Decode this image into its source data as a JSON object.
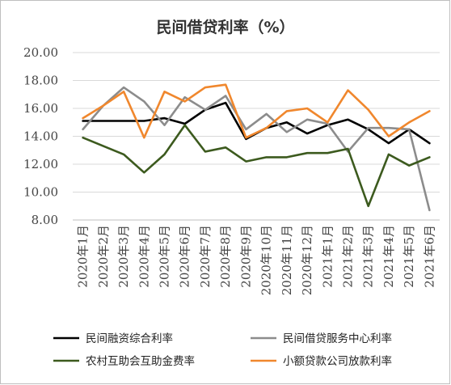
{
  "chart_data": {
    "type": "line",
    "title": "民间借贷利率（%）",
    "xlabel": "",
    "ylabel": "",
    "ylim": [
      8,
      20
    ],
    "yticks": [
      "8.00",
      "10.00",
      "12.00",
      "14.00",
      "16.00",
      "18.00",
      "20.00"
    ],
    "grid": true,
    "legend_position": "bottom",
    "categories": [
      "2020年1月",
      "2020年2月",
      "2020年3月",
      "2020年4月",
      "2020年5月",
      "2020年6月",
      "2020年7月",
      "2020年8月",
      "2020年9月",
      "2020年10月",
      "2020年11月",
      "2020年12月",
      "2021年1月",
      "2021年2月",
      "2021年3月",
      "2021年4月",
      "2021年5月",
      "2021年6月"
    ],
    "series": [
      {
        "name": "民间融资综合利率",
        "color": "#000000",
        "values": [
          15.1,
          15.1,
          15.1,
          15.1,
          15.3,
          14.9,
          15.9,
          16.4,
          13.8,
          14.6,
          15.0,
          14.2,
          14.8,
          15.2,
          14.5,
          13.5,
          14.5,
          13.5
        ]
      },
      {
        "name": "民间借贷服务中心利率",
        "color": "#8c8c8c",
        "values": [
          14.5,
          16.2,
          17.5,
          16.5,
          14.8,
          16.8,
          15.9,
          16.9,
          14.5,
          15.6,
          14.3,
          15.2,
          14.9,
          12.9,
          14.6,
          14.6,
          14.5,
          8.7
        ]
      },
      {
        "name": "农村互助会互助金费率",
        "color": "#3c5a1e",
        "values": [
          13.9,
          13.3,
          12.7,
          11.4,
          12.7,
          14.8,
          12.9,
          13.2,
          12.2,
          12.5,
          12.5,
          12.8,
          12.8,
          13.1,
          9.0,
          12.7,
          11.9,
          12.5
        ]
      },
      {
        "name": "小额贷款公司放款利率",
        "color": "#f0872d",
        "values": [
          15.3,
          16.2,
          17.2,
          13.9,
          17.2,
          16.5,
          17.5,
          17.7,
          13.9,
          14.6,
          15.8,
          16.0,
          15.0,
          17.3,
          15.9,
          14.0,
          15.0,
          15.8
        ]
      }
    ]
  }
}
